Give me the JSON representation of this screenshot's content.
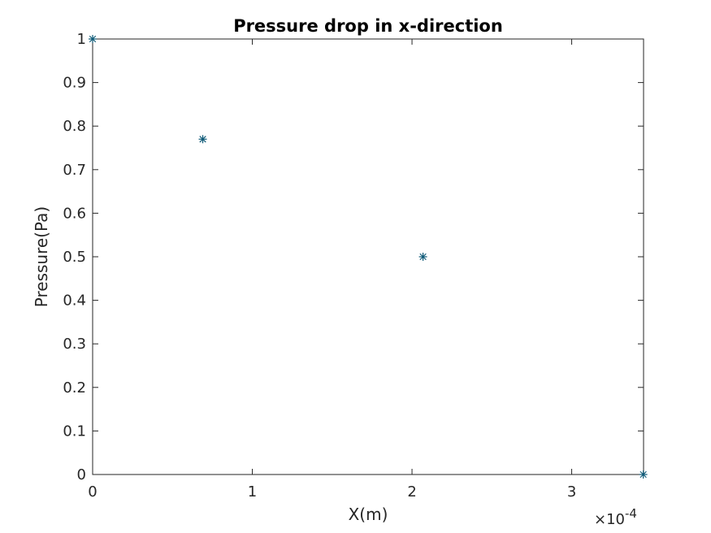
{
  "chart_data": {
    "type": "scatter",
    "title": "Pressure drop in x-direction",
    "xlabel": "X(m)",
    "ylabel": "Pressure(Pa)",
    "x_exponent_label": "×10",
    "x_exponent_power": "-4",
    "xlim": [
      0,
      3.45
    ],
    "ylim": [
      0,
      1
    ],
    "x_scale_factor": 0.0001,
    "xticks": [
      0,
      1,
      2,
      3
    ],
    "xtick_labels": [
      "0",
      "1",
      "2",
      "3"
    ],
    "yticks": [
      0,
      0.1,
      0.2,
      0.3,
      0.4,
      0.5,
      0.6,
      0.7,
      0.8,
      0.9,
      1
    ],
    "ytick_labels": [
      "0",
      "0.1",
      "0.2",
      "0.3",
      "0.4",
      "0.5",
      "0.6",
      "0.7",
      "0.8",
      "0.9",
      "1"
    ],
    "grid": false,
    "marker": "asterisk",
    "colors": {
      "marker": "#0e5a78",
      "axis": "#262626"
    },
    "series": [
      {
        "x": [
          0,
          6.897e-05,
          0.0002069,
          0.00034483
        ],
        "y": [
          1,
          0.77,
          0.5,
          0
        ]
      }
    ]
  }
}
